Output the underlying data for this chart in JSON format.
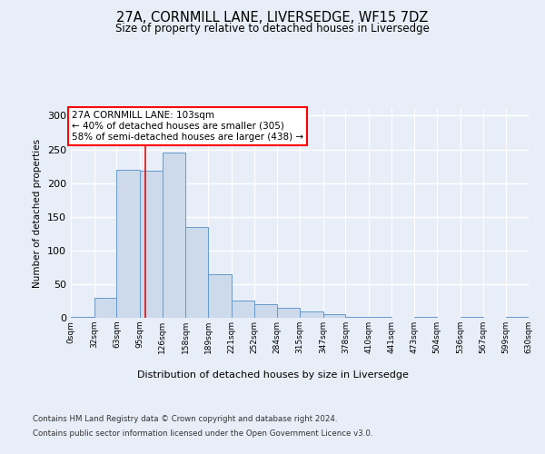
{
  "title_line1": "27A, CORNMILL LANE, LIVERSEDGE, WF15 7DZ",
  "title_line2": "Size of property relative to detached houses in Liversedge",
  "xlabel": "Distribution of detached houses by size in Liversedge",
  "ylabel": "Number of detached properties",
  "annotation_line1": "27A CORNMILL LANE: 103sqm",
  "annotation_line2": "← 40% of detached houses are smaller (305)",
  "annotation_line3": "58% of semi-detached houses are larger (438) →",
  "bar_color": "#ccdaeb",
  "bar_edge_color": "#6699cc",
  "red_line_x": 103,
  "bin_edges": [
    0,
    32,
    63,
    95,
    126,
    158,
    189,
    221,
    252,
    284,
    315,
    347,
    378,
    410,
    441,
    473,
    504,
    536,
    567,
    599,
    630
  ],
  "bar_heights": [
    1,
    30,
    220,
    218,
    245,
    135,
    65,
    25,
    20,
    15,
    10,
    5,
    2,
    1,
    0,
    1,
    0,
    1,
    0,
    1
  ],
  "ylim": [
    0,
    310
  ],
  "yticks": [
    0,
    50,
    100,
    150,
    200,
    250,
    300
  ],
  "background_color": "#e8eef8",
  "plot_bg_color": "#e8eef8",
  "grid_color": "#ffffff",
  "footer_line1": "Contains HM Land Registry data © Crown copyright and database right 2024.",
  "footer_line2": "Contains public sector information licensed under the Open Government Licence v3.0."
}
